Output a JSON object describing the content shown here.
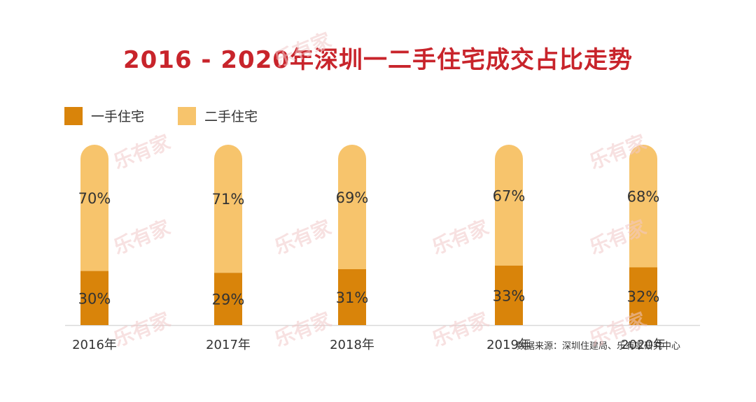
{
  "chart_data": {
    "type": "bar",
    "stacked": true,
    "title": "2016 - 2020年深圳一二手住宅成交占比走势",
    "categories": [
      "2016年",
      "2017年",
      "2018年",
      "2019年",
      "2020年"
    ],
    "series": [
      {
        "name": "一手住宅",
        "values": [
          30,
          29,
          31,
          33,
          32
        ],
        "labels": [
          "30%",
          "29%",
          "31%",
          "33%",
          "32%"
        ],
        "color": "#D9840A"
      },
      {
        "name": "二手住宅",
        "values": [
          70,
          71,
          69,
          67,
          68
        ],
        "labels": [
          "70%",
          "71%",
          "69%",
          "67%",
          "68%"
        ],
        "color": "#F7C46C"
      }
    ],
    "ylim": [
      0,
      100
    ],
    "legend_position": "top-left",
    "grid": false
  },
  "source_text": "数据来源：深圳住建局、乐有家研究中心",
  "watermark_text": "乐有家",
  "colors": {
    "title": "#C8242B",
    "axis": "#d9d9d9",
    "label": "#333333"
  }
}
